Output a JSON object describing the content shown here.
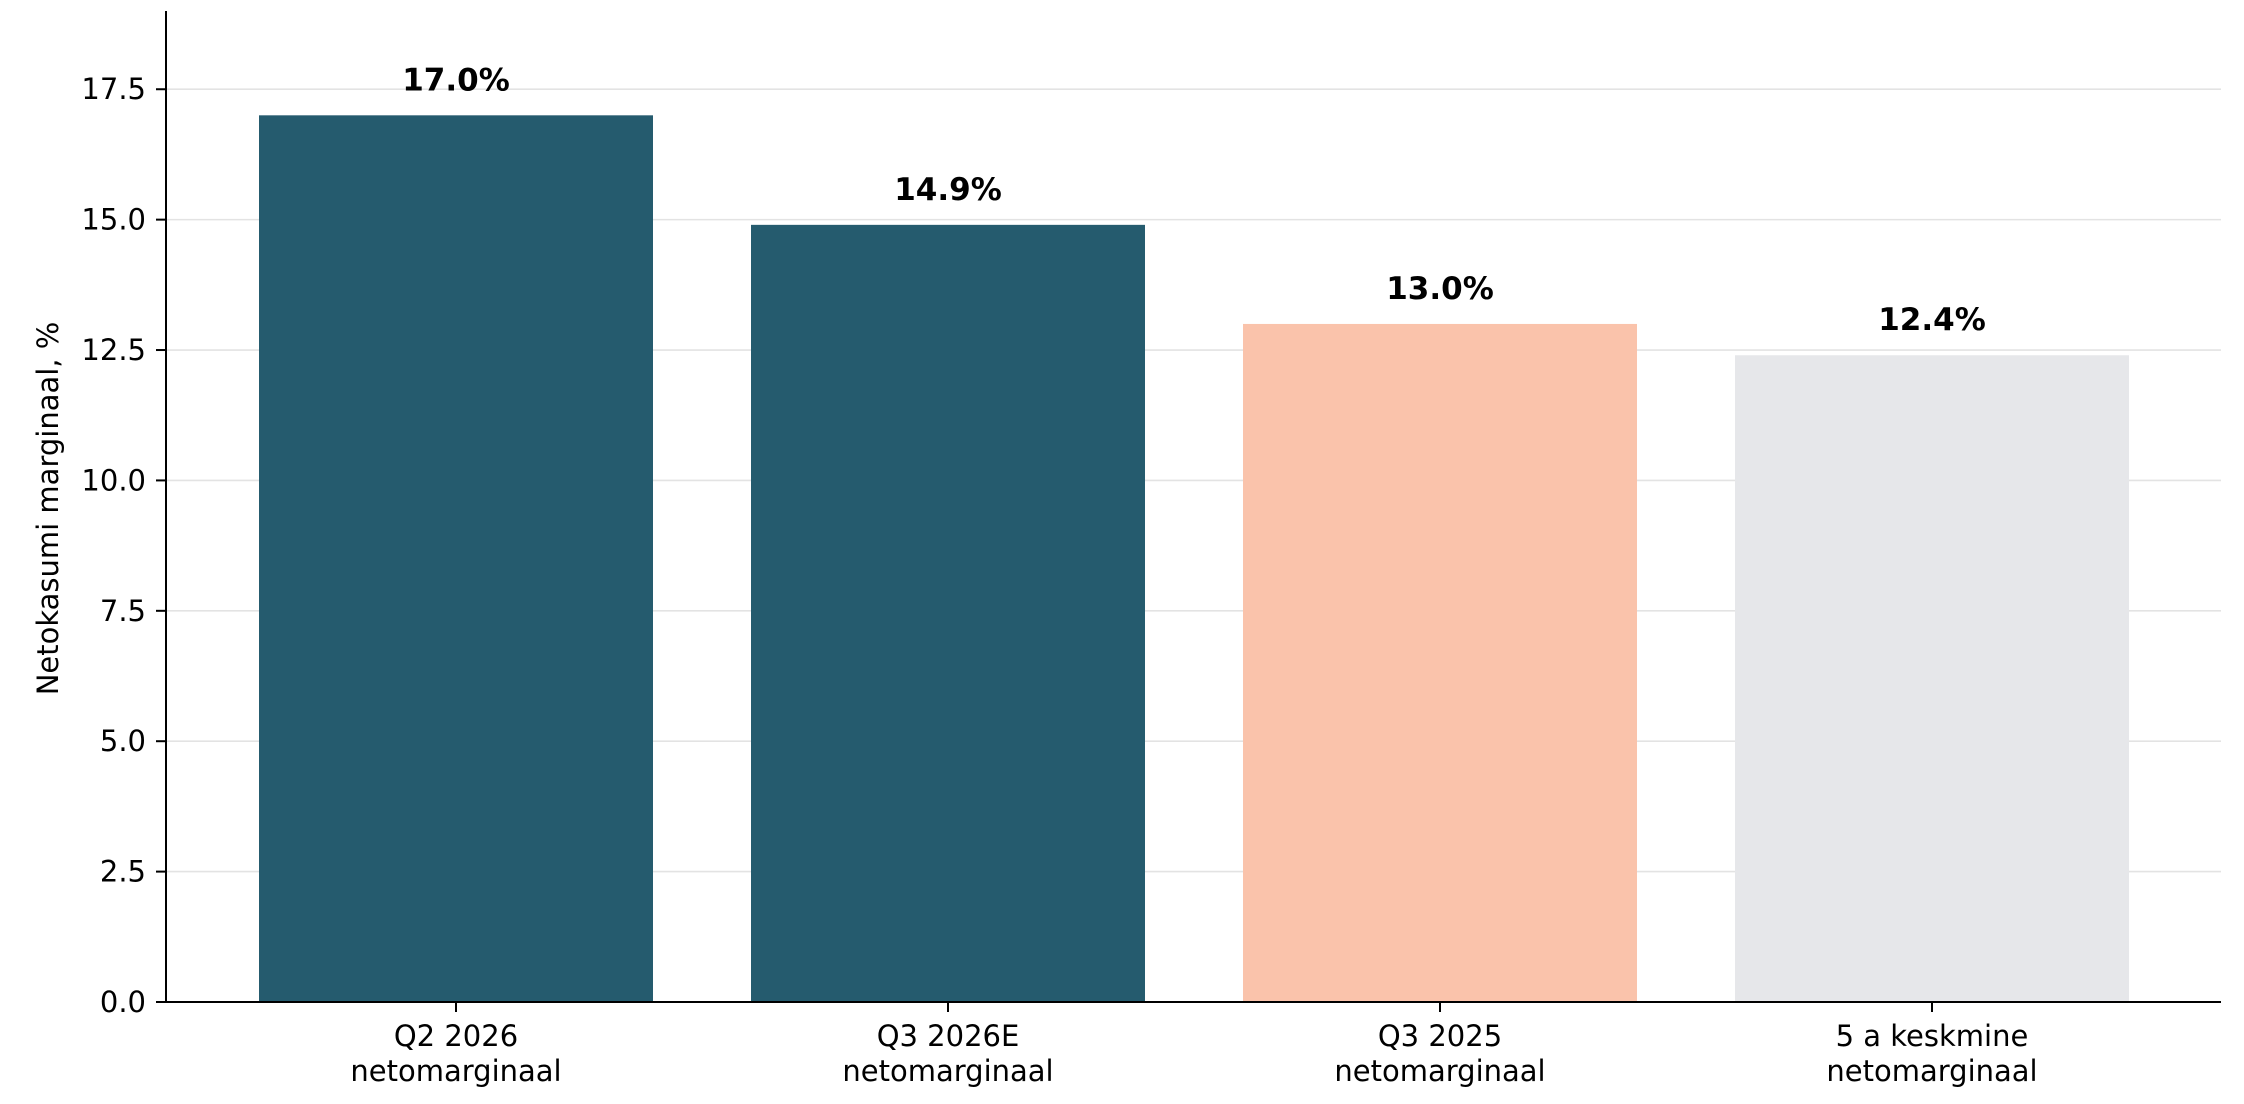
{
  "chart_data": {
    "type": "bar",
    "title": "",
    "xlabel": "",
    "ylabel": "Netokasumi marginaal, %",
    "ylim": [
      0,
      19
    ],
    "yticks": [
      0.0,
      2.5,
      5.0,
      7.5,
      10.0,
      12.5,
      15.0,
      17.5
    ],
    "ytick_labels": [
      "0.0",
      "2.5",
      "5.0",
      "7.5",
      "10.0",
      "12.5",
      "15.0",
      "17.5"
    ],
    "grid": "horizontal",
    "legend": "none",
    "categories": [
      [
        "Q2 2026",
        "netomarginaal"
      ],
      [
        "Q3 2026E",
        "netomarginaal"
      ],
      [
        "Q3 2025",
        "netomarginaal"
      ],
      [
        "5 a keskmine",
        "netomarginaal"
      ]
    ],
    "values": [
      17.0,
      14.9,
      13.0,
      12.4
    ],
    "value_labels": [
      "17.0%",
      "14.9%",
      "13.0%",
      "12.4%"
    ],
    "colors": [
      "#255b6e",
      "#255b6e",
      "#fac3ab",
      "#e6e7ea"
    ]
  }
}
